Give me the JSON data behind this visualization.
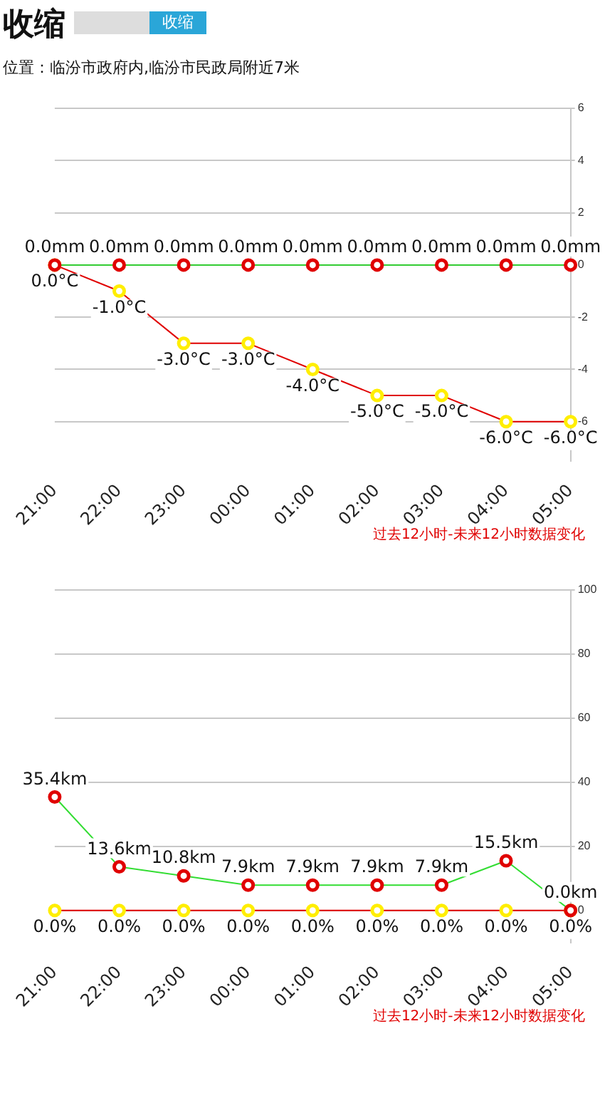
{
  "chart_data": [
    {
      "type": "line",
      "title": "收缩",
      "subtitle": "位置：临汾市政府内,临汾市民政局附近7米",
      "annotations": [
        "收缩",
        "过去12小时-未来12小时数据变化"
      ],
      "categories": [
        "21:00",
        "22:00",
        "23:00",
        "00:00",
        "01:00",
        "02:00",
        "03:00",
        "04:00",
        "05:00"
      ],
      "series": [
        {
          "color": "#33cc33",
          "colors": [
            "#e00000",
            "#e00000",
            "#e00000",
            "#e00000",
            "#e00000",
            "#e00000",
            "#e00000",
            "#e00000",
            "#e00000"
          ],
          "values": [
            0,
            0,
            0,
            0,
            0,
            0,
            0,
            0,
            0
          ],
          "value_labels": [
            "0.0mm",
            "0.0mm",
            "0.0mm",
            "0.0mm",
            "0.0mm",
            "0.0mm",
            "0.0mm",
            "0.0mm",
            "0.0mm"
          ]
        },
        {
          "color": "#e00000",
          "colors": [
            "#ffee00",
            "#ffee00",
            "#ffee00",
            "#ffee00",
            "#ffee00",
            "#ffee00",
            "#ffee00",
            "#ffee00",
            "#ffee00"
          ],
          "values": [
            0,
            -1,
            -3,
            -3,
            -4,
            -5,
            -5,
            -6,
            -6
          ],
          "value_labels": [
            "0.0°C",
            "-1.0°C",
            "-3.0°C",
            "-3.0°C",
            "-4.0°C",
            "-5.0°C",
            "-5.0°C",
            "-6.0°C",
            "-6.0°C"
          ]
        }
      ],
      "ylim": [
        -7.5,
        6
      ],
      "yticks": [
        -6,
        -4,
        -2,
        0,
        2,
        4,
        6
      ],
      "grid": "y",
      "legend": false,
      "marker": "circle",
      "line_style": "solid"
    },
    {
      "type": "line",
      "annotations": [
        "过去12小时-未来12小时数据变化"
      ],
      "categories": [
        "21:00",
        "22:00",
        "23:00",
        "00:00",
        "01:00",
        "02:00",
        "03:00",
        "04:00",
        "05:00"
      ],
      "series": [
        {
          "color": "#33dd33",
          "colors": [
            "#e00000",
            "#e00000",
            "#e00000",
            "#e00000",
            "#e00000",
            "#e00000",
            "#e00000",
            "#e00000",
            "#e00000"
          ],
          "values": [
            35.4,
            13.6,
            10.8,
            7.9,
            7.9,
            7.9,
            7.9,
            15.5,
            0
          ],
          "value_labels": [
            "35.4km",
            "13.6km",
            "10.8km",
            "7.9km",
            "7.9km",
            "7.9km",
            "7.9km",
            "15.5km",
            "0.0km"
          ]
        },
        {
          "color": "#e00000",
          "colors": [
            "#ffee00",
            "#ffee00",
            "#ffee00",
            "#ffee00",
            "#ffee00",
            "#ffee00",
            "#ffee00",
            "#ffee00",
            "#ffee00"
          ],
          "values": [
            0,
            0,
            0,
            0,
            0,
            0,
            0,
            0,
            0
          ],
          "value_labels": [
            "0.0%",
            "0.0%",
            "0.0%",
            "0.0%",
            "0.0%",
            "0.0%",
            "0.0%",
            "0.0%",
            "0.0%"
          ]
        }
      ],
      "ylim": [
        -10,
        100
      ],
      "yticks": [
        0,
        20,
        40,
        60,
        80,
        100
      ],
      "grid": "y",
      "legend": false,
      "marker": "circle",
      "line_style": "solid"
    }
  ]
}
